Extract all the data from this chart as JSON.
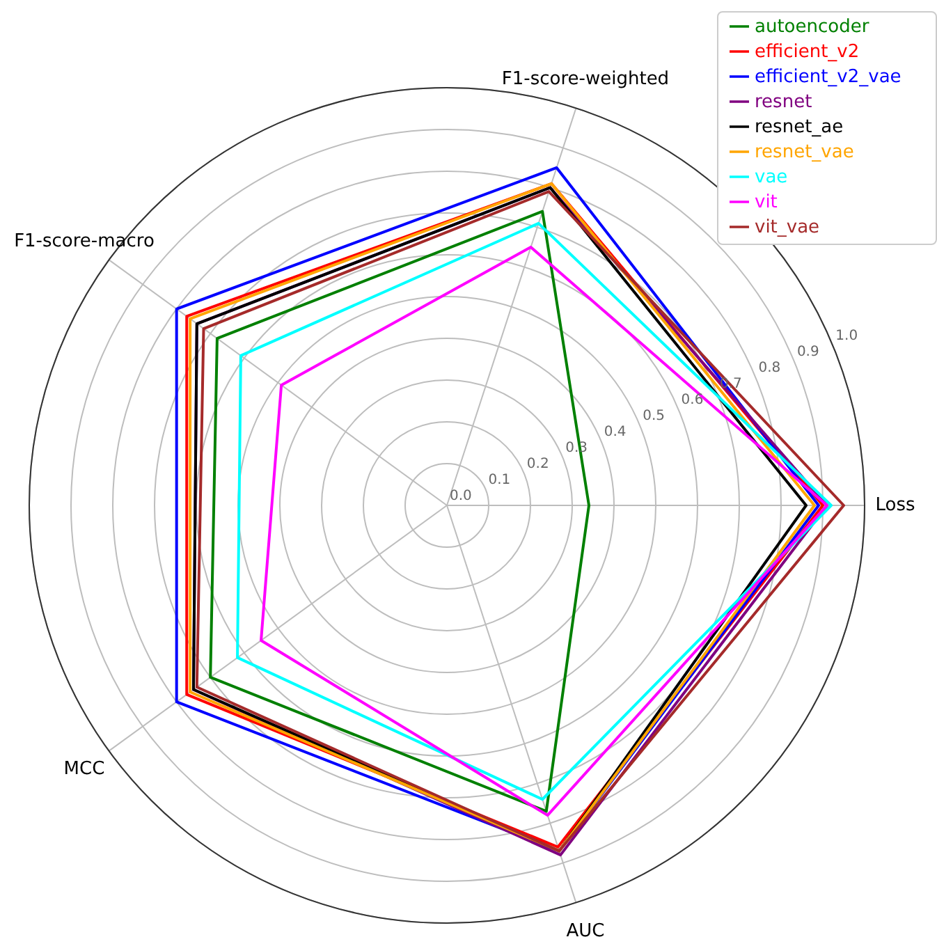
{
  "chart_data": {
    "type": "radar",
    "categories": [
      "F1-score-weighted",
      "Loss",
      "AUC",
      "MCC",
      "F1-score-macro"
    ],
    "series": [
      {
        "name": "autoencoder",
        "color": "#008000",
        "values": [
          0.74,
          0.34,
          0.77,
          0.7,
          0.68
        ]
      },
      {
        "name": "efficient_v2",
        "color": "#ff0000",
        "values": [
          0.81,
          0.9,
          0.86,
          0.77,
          0.77
        ]
      },
      {
        "name": "efficient_v2_vae",
        "color": "#0000ff",
        "values": [
          0.85,
          0.89,
          0.87,
          0.8,
          0.8
        ]
      },
      {
        "name": "resnet",
        "color": "#800080",
        "values": [
          0.8,
          0.91,
          0.88,
          0.75,
          0.74
        ]
      },
      {
        "name": "resnet_ae",
        "color": "#000000",
        "values": [
          0.8,
          0.86,
          0.87,
          0.75,
          0.74
        ]
      },
      {
        "name": "resnet_vae",
        "color": "#ffa500",
        "values": [
          0.81,
          0.88,
          0.87,
          0.76,
          0.76
        ]
      },
      {
        "name": "vae",
        "color": "#00ffff",
        "values": [
          0.71,
          0.92,
          0.74,
          0.62,
          0.61
        ]
      },
      {
        "name": "vit",
        "color": "#ff00ff",
        "values": [
          0.65,
          0.91,
          0.78,
          0.55,
          0.49
        ]
      },
      {
        "name": "vit_vae",
        "color": "#a52a2a",
        "values": [
          0.79,
          0.95,
          0.87,
          0.74,
          0.72
        ]
      }
    ],
    "ylim": [
      0,
      1
    ],
    "yticks": [
      {
        "value": 0,
        "label": "0.0"
      },
      0.1,
      0.2,
      0.3,
      0.4,
      0.5,
      0.6,
      0.7,
      0.8,
      0.9,
      {
        "value": 1,
        "label": "1.0"
      }
    ],
    "grid": true,
    "legend": "top right",
    "marker": "none"
  }
}
